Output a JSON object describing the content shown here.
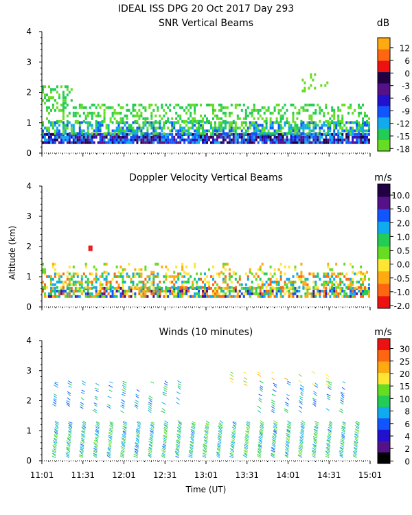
{
  "title": "IDEAL ISS DPG  20 Oct 2017 Day 293",
  "ylabel": "Altitude (km)",
  "xlabel": "Time (UT)",
  "x_ticks": [
    "11:01",
    "11:31",
    "12:01",
    "12:31",
    "13:01",
    "13:31",
    "14:01",
    "14:31",
    "15:01"
  ],
  "y_ticks": [
    "0",
    "1",
    "2",
    "3",
    "4"
  ],
  "colors": {
    "snr": [
      "#66dd22",
      "#22cc55",
      "#11aaee",
      "#1155ff",
      "#2211cc",
      "#551188",
      "#220044",
      "#ee1111",
      "#ff6611",
      "#ffaa11"
    ],
    "doppler": [
      "#ee1111",
      "#ff6611",
      "#ffaa11",
      "#ffe633",
      "#66dd22",
      "#22cc55",
      "#11aaee",
      "#1155ff",
      "#551188",
      "#220044"
    ],
    "winds": [
      "#000000",
      "#551188",
      "#2211cc",
      "#1155ff",
      "#11aaee",
      "#22cc55",
      "#66dd22",
      "#ffe633",
      "#ffaa11",
      "#ff6611",
      "#ee1111"
    ]
  },
  "chart_data": [
    {
      "type": "heatmap",
      "title": "SNR Vertical Beams",
      "unit": "dB",
      "xlim": [
        0,
        240
      ],
      "ylim": [
        0,
        4
      ],
      "colorbar_ticks": [
        "12",
        "6",
        "0",
        "-3",
        "-6",
        "-9",
        "-12",
        "-15",
        "-18"
      ],
      "layers": [
        {
          "alt": [
            0.3,
            0.6
          ],
          "x": [
            0,
            240
          ],
          "level": [
            2,
            6
          ],
          "density": 0.9
        },
        {
          "alt": [
            0.6,
            1.0
          ],
          "x": [
            0,
            240
          ],
          "level": [
            0,
            3
          ],
          "density": 0.65
        },
        {
          "alt": [
            1.0,
            1.6
          ],
          "x": [
            0,
            240
          ],
          "level": [
            0,
            1
          ],
          "density": 0.35
        },
        {
          "alt": [
            1.6,
            2.2
          ],
          "x": [
            0,
            22
          ],
          "level": [
            0,
            1
          ],
          "density": 0.4
        },
        {
          "alt": [
            2.0,
            2.6
          ],
          "x": [
            190,
            210
          ],
          "level": [
            0,
            0
          ],
          "density": 0.12
        }
      ]
    },
    {
      "type": "heatmap",
      "title": "Doppler Velocity Vertical Beams",
      "unit": "m/s",
      "xlim": [
        0,
        240
      ],
      "ylim": [
        0,
        4
      ],
      "colorbar_ticks": [
        "10.0",
        "5.0",
        "2.0",
        "1.0",
        "0.5",
        "0.0",
        "-0.5",
        "-1.0",
        "-2.0"
      ],
      "layers": [
        {
          "alt": [
            0.3,
            0.6
          ],
          "x": [
            0,
            240
          ],
          "level": [
            1,
            8
          ],
          "density": 0.75
        },
        {
          "alt": [
            0.6,
            1.1
          ],
          "x": [
            0,
            240
          ],
          "level": [
            1,
            6
          ],
          "density": 0.45
        },
        {
          "alt": [
            1.1,
            1.4
          ],
          "x": [
            0,
            240
          ],
          "level": [
            2,
            4
          ],
          "density": 0.15
        },
        {
          "alt": [
            1.85,
            2.0
          ],
          "x": [
            34,
            36
          ],
          "level": [
            0,
            0
          ],
          "density": 1.0
        }
      ]
    },
    {
      "type": "wind_barbs",
      "title": "Winds (10 minutes)",
      "unit": "m/s",
      "xlim": [
        0,
        240
      ],
      "ylim": [
        0,
        4
      ],
      "colorbar_ticks": [
        "30",
        "25",
        "20",
        "15",
        "10",
        "8",
        "6",
        "4",
        "2",
        "0"
      ],
      "profile_times": [
        10,
        20,
        30,
        40,
        50,
        60,
        70,
        80,
        90,
        100,
        110,
        120,
        130,
        140,
        150,
        160,
        170,
        180,
        190,
        200,
        210,
        220,
        230
      ],
      "lower_layer": {
        "alt": [
          0.1,
          1.3
        ],
        "speed_range": [
          10,
          18
        ]
      },
      "upper_layer": {
        "alt": [
          1.6,
          2.6
        ],
        "speed_range": [
          8,
          16
        ]
      },
      "high_layer": {
        "alt": [
          2.5,
          3.0
        ],
        "x": [
          140,
          210
        ],
        "speed_range": [
          18,
          24
        ]
      }
    }
  ]
}
